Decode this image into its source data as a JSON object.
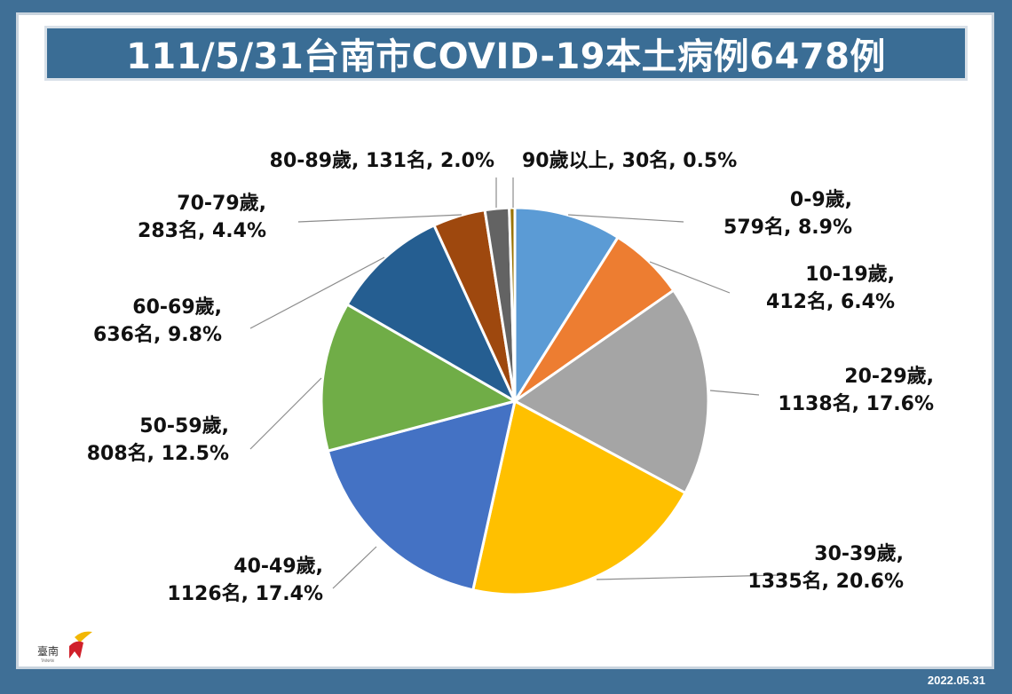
{
  "chart_data": {
    "type": "pie",
    "title": "111/5/31台南市COVID-19本土病例6478例",
    "slices": [
      {
        "name": "0-9歲",
        "count_label": "579名",
        "percent_label": "8.9%",
        "value": 579,
        "color": "#5b9bd5"
      },
      {
        "name": "10-19歲",
        "count_label": "412名",
        "percent_label": "6.4%",
        "value": 412,
        "color": "#ed7d31"
      },
      {
        "name": "20-29歲",
        "count_label": "1138名",
        "percent_label": "17.6%",
        "value": 1138,
        "color": "#a5a5a5"
      },
      {
        "name": "30-39歲",
        "count_label": "1335名",
        "percent_label": "20.6%",
        "value": 1335,
        "color": "#ffc000"
      },
      {
        "name": "40-49歲",
        "count_label": "1126名",
        "percent_label": "17.4%",
        "value": 1126,
        "color": "#4472c4"
      },
      {
        "name": "50-59歲",
        "count_label": "808名",
        "percent_label": "12.5%",
        "value": 808,
        "color": "#70ad47"
      },
      {
        "name": "60-69歲",
        "count_label": "636名",
        "percent_label": "9.8%",
        "value": 636,
        "color": "#255e91"
      },
      {
        "name": "70-79歲",
        "count_label": "283名",
        "percent_label": "4.4%",
        "value": 283,
        "color": "#9e480e"
      },
      {
        "name": "80-89歲",
        "count_label": "131名",
        "percent_label": "2.0%",
        "value": 131,
        "color": "#636363"
      },
      {
        "name": "90歲以上",
        "count_label": "30名",
        "percent_label": "0.5%",
        "value": 30,
        "color": "#997300"
      }
    ]
  },
  "footer": {
    "date": "2022.05.31",
    "logo_text": "臺南",
    "logo_subtext": "TAINAN"
  }
}
